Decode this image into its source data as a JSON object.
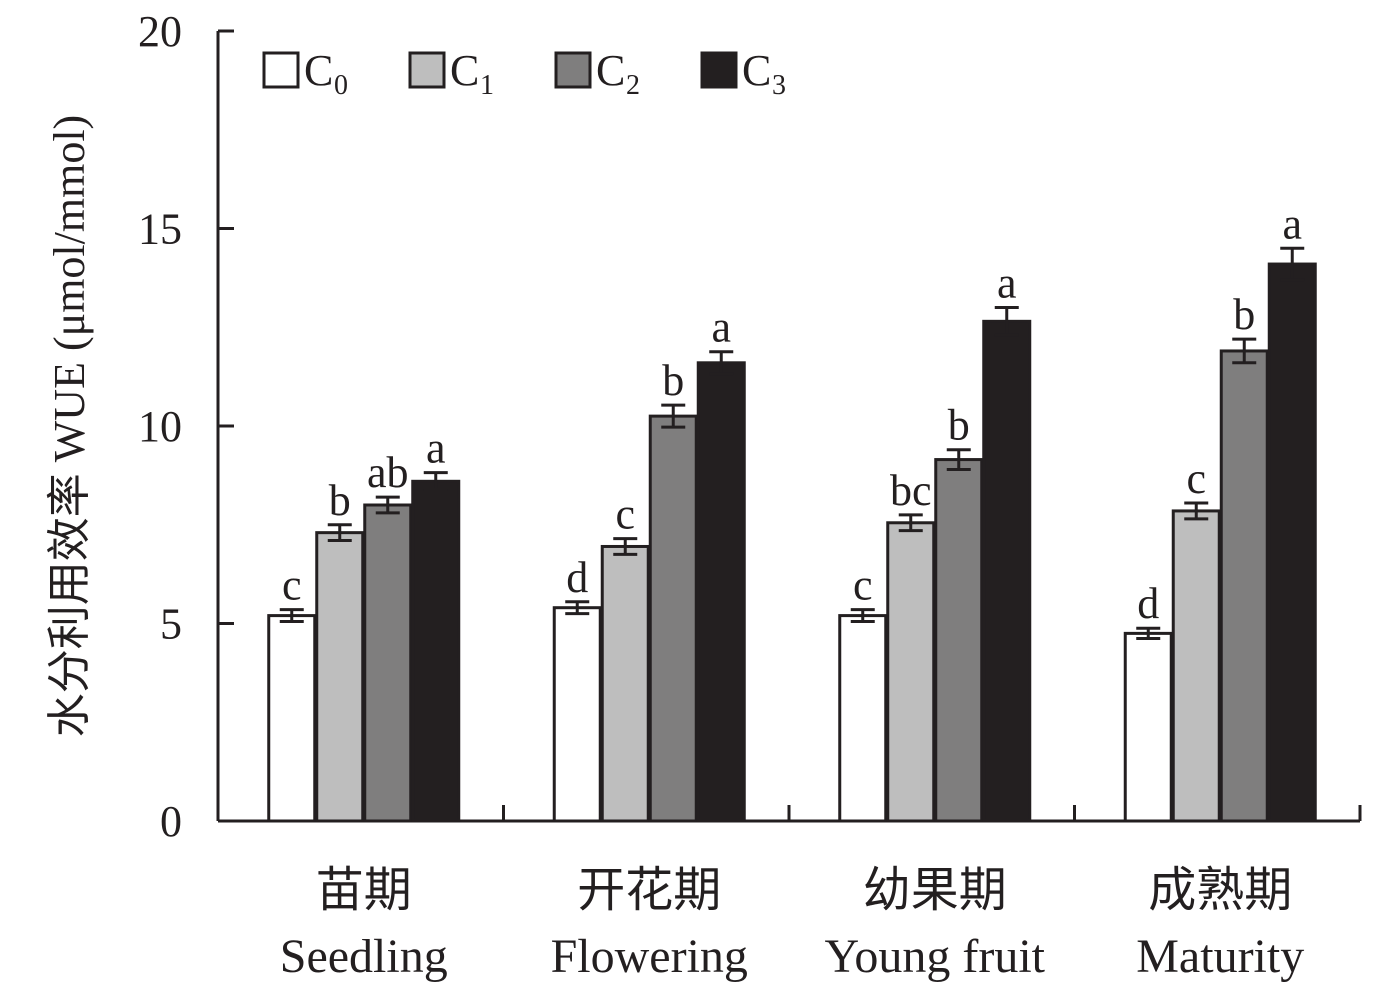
{
  "chart_data": {
    "type": "bar",
    "title": "",
    "ylabel": "水分利用效率 WUE (μmol/mmol)",
    "xlabel": "",
    "ylim": [
      0,
      20
    ],
    "yticks": [
      0,
      5,
      10,
      15,
      20
    ],
    "grid": false,
    "legend_position": "top-left",
    "categories": [
      {
        "zh": "苗期",
        "en": "Seedling"
      },
      {
        "zh": "开花期",
        "en": "Flowering"
      },
      {
        "zh": "幼果期",
        "en": "Young fruit"
      },
      {
        "zh": "成熟期",
        "en": "Maturity"
      }
    ],
    "series": [
      {
        "name": "C",
        "subscript": "0",
        "color": "#ffffff",
        "values": [
          5.2,
          5.4,
          5.2,
          4.75
        ],
        "errors": [
          0.15,
          0.15,
          0.15,
          0.13
        ],
        "letters": [
          "c",
          "d",
          "c",
          "d"
        ]
      },
      {
        "name": "C",
        "subscript": "1",
        "color": "#bebebe",
        "values": [
          7.3,
          6.95,
          7.55,
          7.85
        ],
        "errors": [
          0.2,
          0.2,
          0.2,
          0.2
        ],
        "letters": [
          "b",
          "c",
          "bc",
          "c"
        ]
      },
      {
        "name": "C",
        "subscript": "2",
        "color": "#7f7e7e",
        "values": [
          8.0,
          10.25,
          9.15,
          11.9
        ],
        "errors": [
          0.2,
          0.28,
          0.25,
          0.3
        ],
        "letters": [
          "ab",
          "b",
          "b",
          "b"
        ]
      },
      {
        "name": "C",
        "subscript": "3",
        "color": "#231f20",
        "values": [
          8.6,
          11.6,
          12.65,
          14.1
        ],
        "errors": [
          0.22,
          0.28,
          0.35,
          0.4
        ],
        "letters": [
          "a",
          "a",
          "a",
          "a"
        ]
      }
    ],
    "colors": {
      "axis": "#231f20",
      "bar_outline": "#231f20"
    }
  }
}
